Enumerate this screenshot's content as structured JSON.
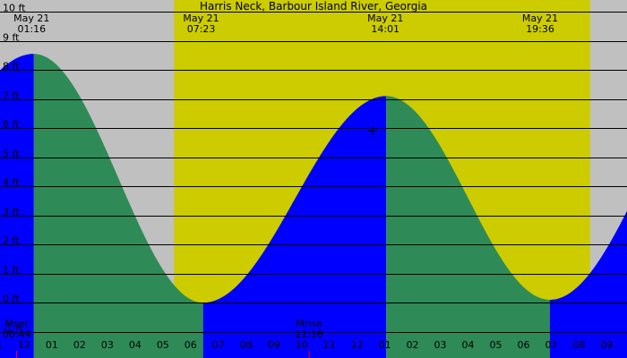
{
  "chart_data": {
    "type": "area",
    "title": "Harris Neck, Barbour Island River, Georgia",
    "y_unit_labels": [
      "-1 ft",
      "0 ft",
      "1 ft",
      "2 ft",
      "3 ft",
      "4 ft",
      "5 ft",
      "6 ft",
      "7 ft",
      "8 ft",
      "9 ft",
      "10 ft"
    ],
    "y_ticks": [
      -1,
      0,
      1,
      2,
      3,
      4,
      5,
      6,
      7,
      8,
      9,
      10
    ],
    "ylim": [
      -1.9,
      10.4
    ],
    "x_range_hours": [
      -0.87,
      21.73
    ],
    "hour_tick_labels": [
      "11",
      "12",
      "01",
      "02",
      "03",
      "04",
      "05",
      "06",
      "07",
      "08",
      "09",
      "10",
      "11",
      "12",
      "01",
      "02",
      "03",
      "04",
      "05",
      "06",
      "07",
      "08",
      "09"
    ],
    "hour_tick_values": [
      -1,
      0,
      1,
      2,
      3,
      4,
      5,
      6,
      7,
      8,
      9,
      10,
      11,
      12,
      13,
      14,
      15,
      16,
      17,
      18,
      19,
      20,
      21
    ],
    "daylight_hours": [
      5.4,
      20.4
    ],
    "tides": [
      {
        "type": "low",
        "hour": -7.0,
        "height": 0.05
      },
      {
        "type": "high",
        "hour": 0.35,
        "height": 8.55
      },
      {
        "type": "low",
        "hour": 6.45,
        "height": 0.0
      },
      {
        "type": "high",
        "hour": 13.05,
        "height": 7.1
      },
      {
        "type": "low",
        "hour": 18.95,
        "height": 0.1
      },
      {
        "type": "high",
        "hour": 25.7,
        "height": 8.5
      }
    ],
    "top_labels": [
      {
        "date": "May 21",
        "time": "01:16",
        "hour": 0.27
      },
      {
        "date": "May 21",
        "time": "07:23",
        "hour": 6.38
      },
      {
        "date": "May 21",
        "time": "14:01",
        "hour": 13.02
      },
      {
        "date": "May 21",
        "time": "19:36",
        "hour": 18.6
      }
    ],
    "moon_labels": [
      {
        "name": "Mset",
        "time": "00:44",
        "hour": -0.27
      },
      {
        "name": "Mrise",
        "time": "11:16",
        "hour": 10.27
      }
    ],
    "colors": {
      "background": "#c0c0c0",
      "daylight": "#cccc00",
      "rising": "#0000ff",
      "falling": "#2e8b57",
      "gridline": "#000000",
      "moon_marker": "#ff0000"
    }
  }
}
